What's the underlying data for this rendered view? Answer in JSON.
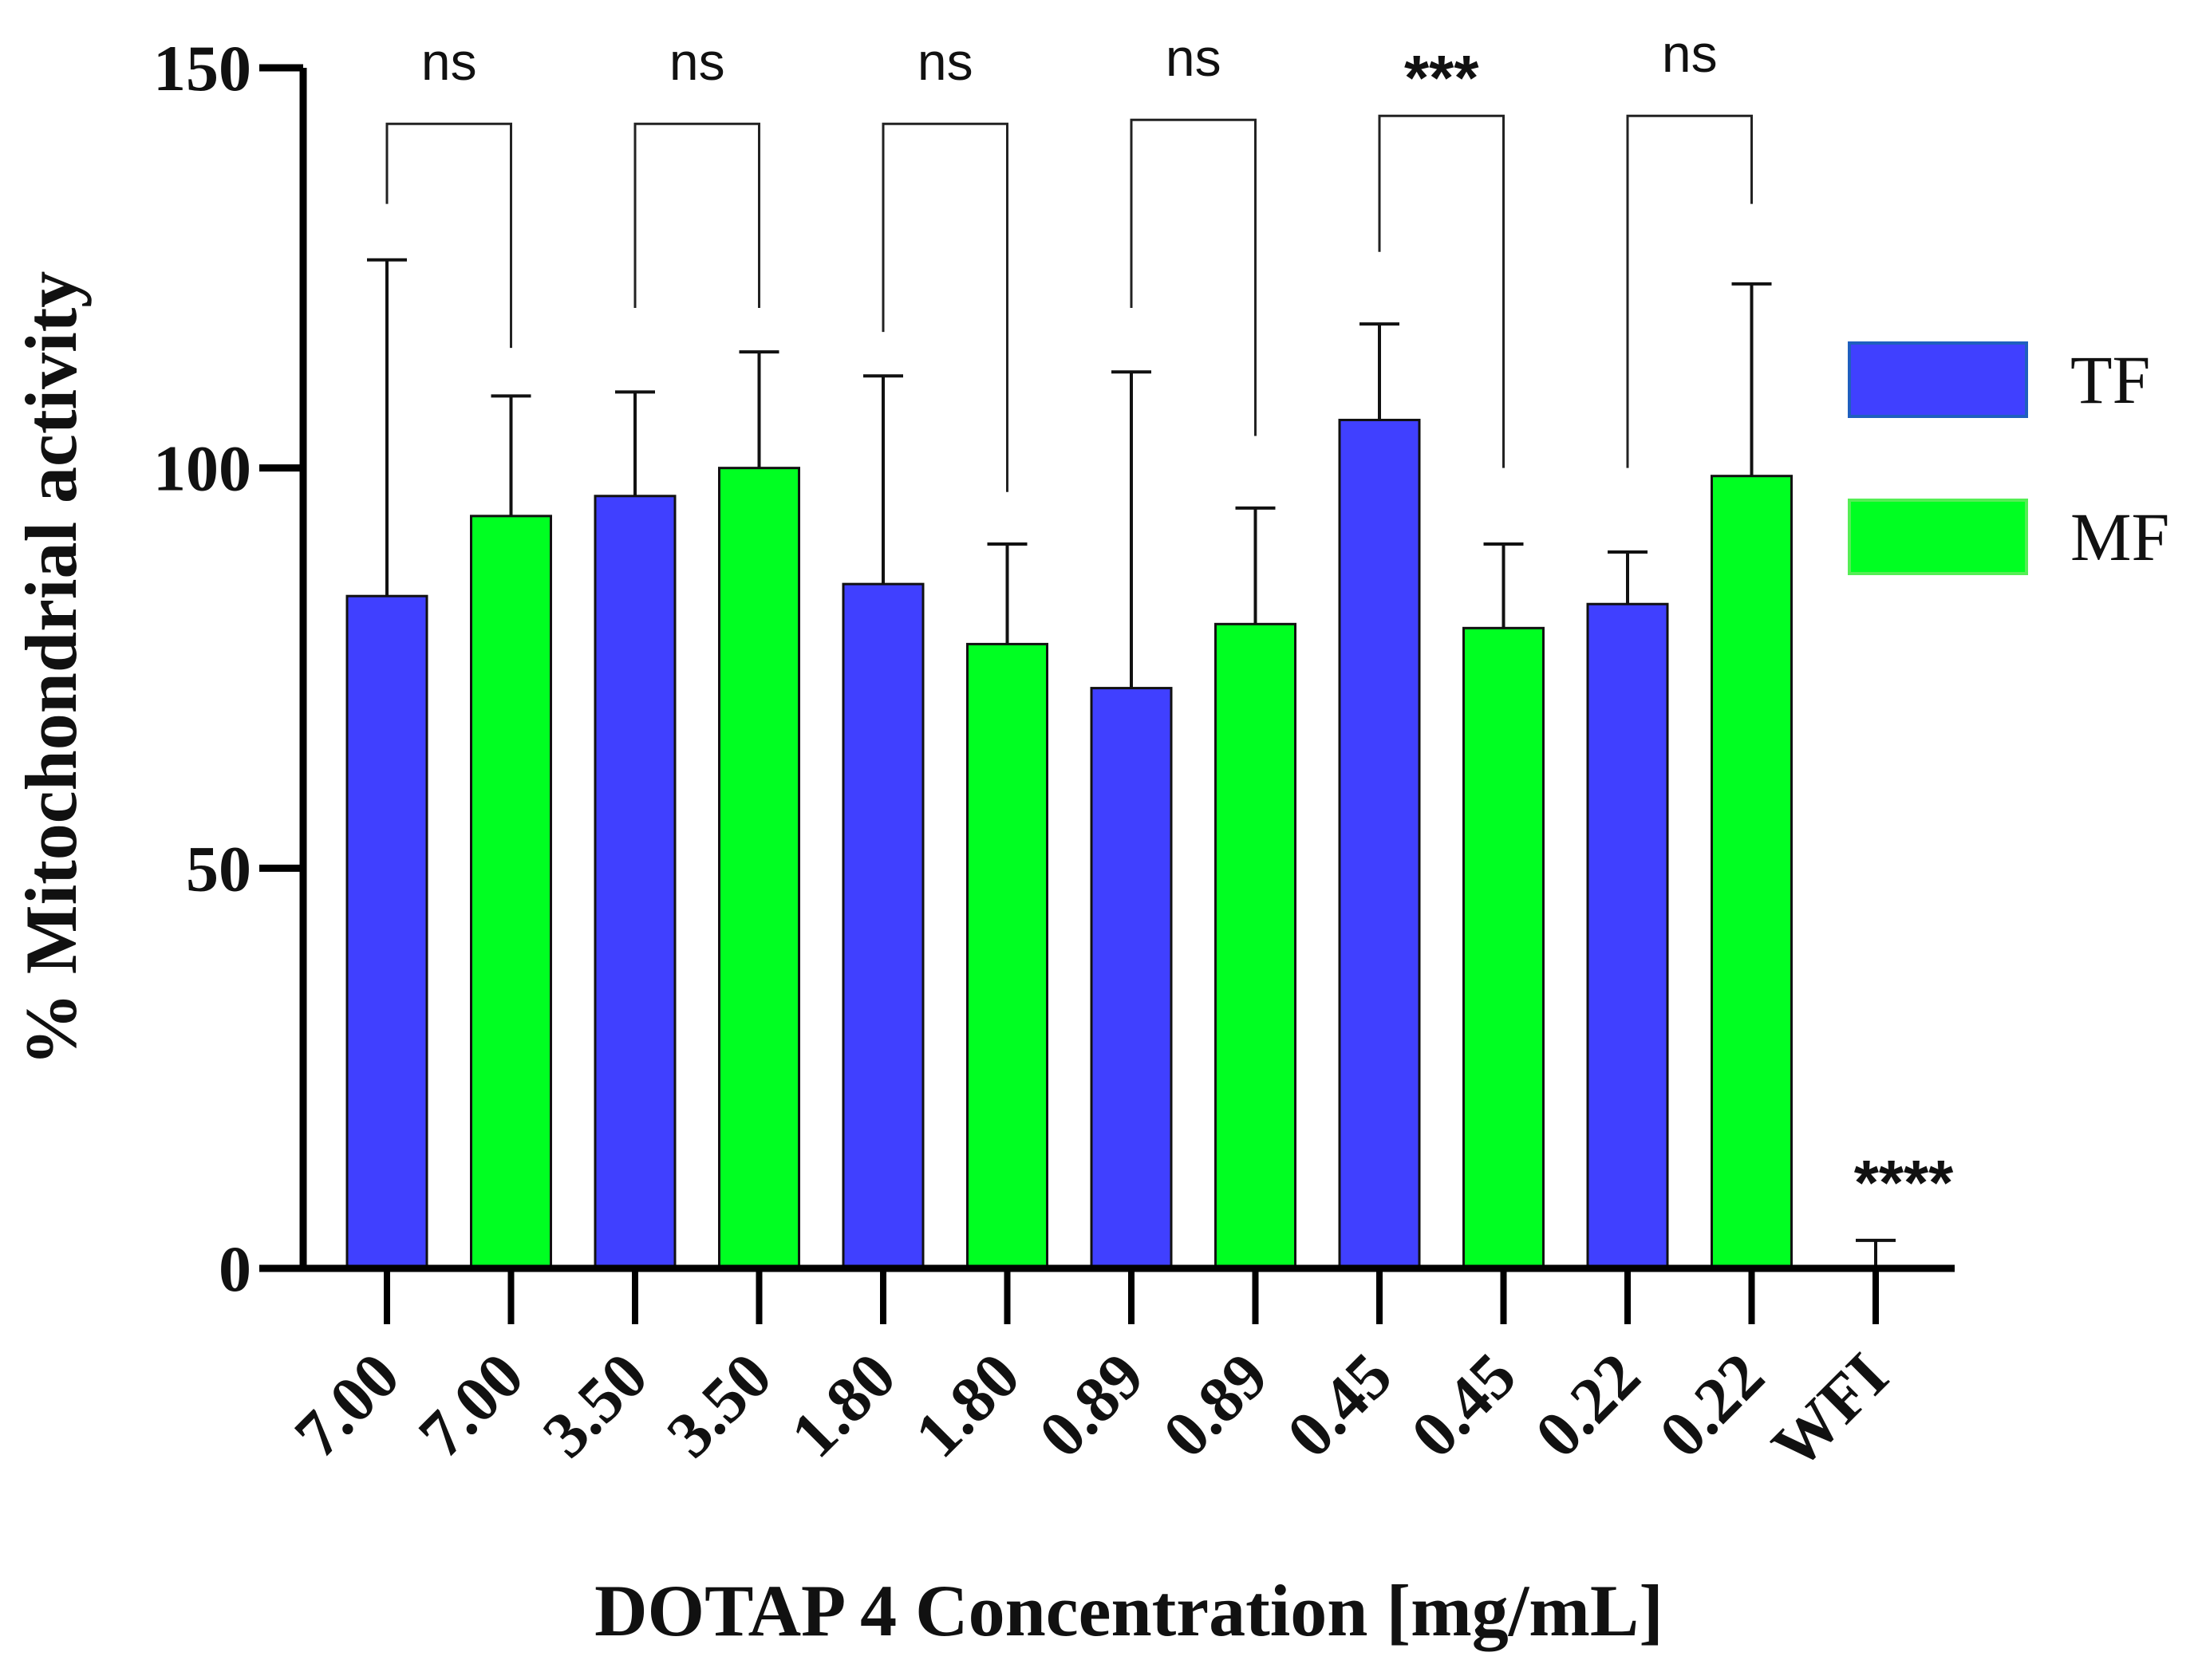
{
  "chart_data": {
    "type": "bar",
    "title": "",
    "xlabel": "DOTAP 4 Concentration [mg/mL]",
    "ylabel": "% Mitochondrial activity",
    "ylim": [
      0,
      150
    ],
    "yticks": [
      0,
      50,
      100,
      150
    ],
    "grid": false,
    "categories": [
      "7.00",
      "7.00",
      "3.50",
      "3.50",
      "1.80",
      "1.80",
      "0.89",
      "0.89",
      "0.45",
      "0.45",
      "0.22",
      "0.22",
      "WFI"
    ],
    "bars": [
      {
        "label": "7.00",
        "group": "TF",
        "value": 84,
        "error": 42
      },
      {
        "label": "7.00",
        "group": "MF",
        "value": 94,
        "error": 15
      },
      {
        "label": "3.50",
        "group": "TF",
        "value": 96.5,
        "error": 13
      },
      {
        "label": "3.50",
        "group": "MF",
        "value": 100,
        "error": 14.5
      },
      {
        "label": "1.80",
        "group": "TF",
        "value": 85.5,
        "error": 26
      },
      {
        "label": "1.80",
        "group": "MF",
        "value": 78,
        "error": 12.5
      },
      {
        "label": "0.89",
        "group": "TF",
        "value": 72.5,
        "error": 39.5
      },
      {
        "label": "0.89",
        "group": "MF",
        "value": 80.5,
        "error": 14.5
      },
      {
        "label": "0.45",
        "group": "TF",
        "value": 106,
        "error": 12
      },
      {
        "label": "0.45",
        "group": "MF",
        "value": 80,
        "error": 10.5
      },
      {
        "label": "0.22",
        "group": "TF",
        "value": 83,
        "error": 6.5
      },
      {
        "label": "0.22",
        "group": "MF",
        "value": 99,
        "error": 24
      },
      {
        "label": "WFI",
        "group": "none",
        "value": 0,
        "error": 3.5
      }
    ],
    "legend": {
      "position": "right",
      "entries": [
        {
          "name": "TF",
          "color": "#4040ff"
        },
        {
          "name": "MF",
          "color": "#00ff22"
        }
      ]
    },
    "colors": {
      "TF": "#4040ff",
      "MF": "#00ff22",
      "none": "#ffffff"
    },
    "comparisons": [
      {
        "a": 0,
        "b": 1,
        "label": "ns",
        "level": 143,
        "leftDrop": 133,
        "rightDrop": 115
      },
      {
        "a": 2,
        "b": 3,
        "label": "ns",
        "level": 143,
        "leftDrop": 120,
        "rightDrop": 120
      },
      {
        "a": 4,
        "b": 5,
        "label": "ns",
        "level": 143,
        "leftDrop": 117,
        "rightDrop": 97
      },
      {
        "a": 6,
        "b": 7,
        "label": "ns",
        "level": 143.5,
        "leftDrop": 120,
        "rightDrop": 104
      },
      {
        "a": 8,
        "b": 9,
        "label": "***",
        "level": 144,
        "leftDrop": 127,
        "rightDrop": 100
      },
      {
        "a": 10,
        "b": 11,
        "label": "ns",
        "level": 144,
        "leftDrop": 100,
        "rightDrop": 133
      }
    ],
    "annotations": [
      {
        "bar": 12,
        "label": "****"
      }
    ]
  }
}
